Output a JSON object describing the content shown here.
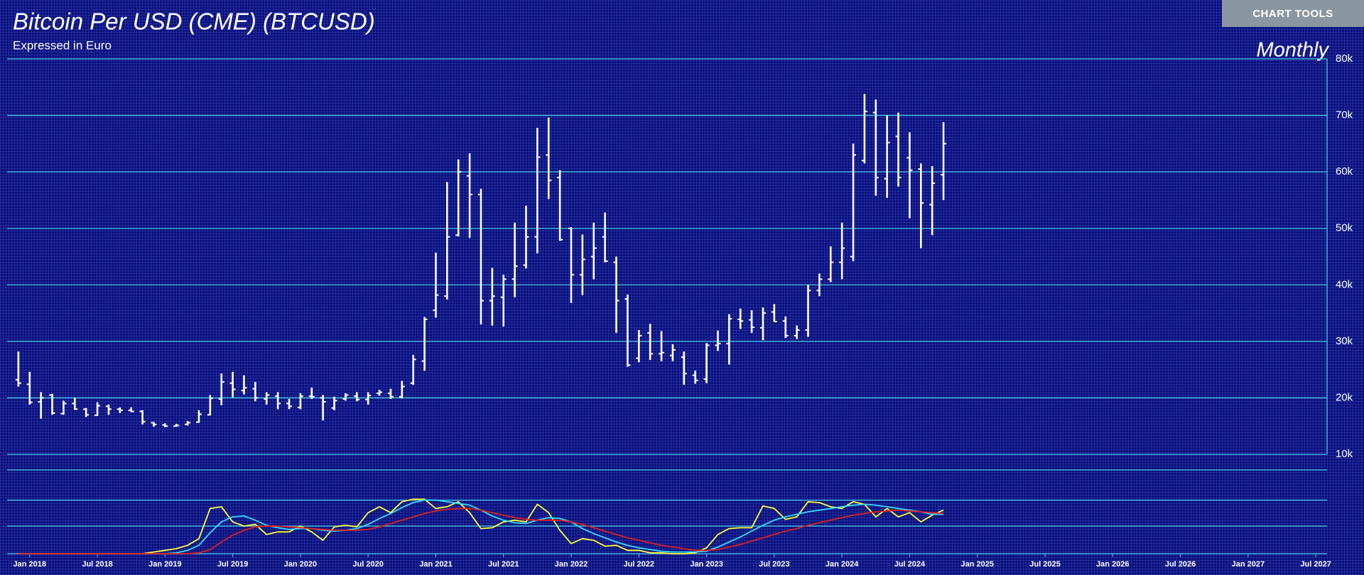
{
  "toolbar": {
    "button": "CHART TOOLS"
  },
  "chart_data": [
    {
      "type": "ohlc",
      "title": "Bitcoin Per USD (CME) (BTCUSD)",
      "subtitle": "Expressed in Euro",
      "timeframe": "Monthly",
      "x": [
        "2017-12",
        "2018-01",
        "2018-02",
        "2018-03",
        "2018-04",
        "2018-05",
        "2018-06",
        "2018-07",
        "2018-08",
        "2018-09",
        "2018-10",
        "2018-11",
        "2018-12",
        "2019-01",
        "2019-02",
        "2019-03",
        "2019-04",
        "2019-05",
        "2019-06",
        "2019-07",
        "2019-08",
        "2019-09",
        "2019-10",
        "2019-11",
        "2019-12",
        "2020-01",
        "2020-02",
        "2020-03",
        "2020-04",
        "2020-05",
        "2020-06",
        "2020-07",
        "2020-08",
        "2020-09",
        "2020-10",
        "2020-11",
        "2020-12",
        "2021-01",
        "2021-02",
        "2021-03",
        "2021-04",
        "2021-05",
        "2021-06",
        "2021-07",
        "2021-08",
        "2021-09",
        "2021-10",
        "2021-11",
        "2021-12",
        "2022-01",
        "2022-02",
        "2022-03",
        "2022-04",
        "2022-05",
        "2022-06",
        "2022-07",
        "2022-08",
        "2022-09",
        "2022-10",
        "2022-11",
        "2022-12",
        "2023-01",
        "2023-02",
        "2023-03",
        "2023-04",
        "2023-05",
        "2023-06",
        "2023-07",
        "2023-08",
        "2023-09",
        "2023-10",
        "2023-11",
        "2023-12",
        "2024-01",
        "2024-02",
        "2024-03",
        "2024-04",
        "2024-05",
        "2024-06",
        "2024-07",
        "2024-08",
        "2024-09",
        "2024-10"
      ],
      "open": [
        23200,
        22400,
        19300,
        20500,
        17200,
        19000,
        18000,
        16900,
        18500,
        18000,
        17800,
        17600,
        15600,
        15200,
        15000,
        15300,
        15700,
        17000,
        19800,
        22600,
        21300,
        21600,
        19800,
        20300,
        19000,
        18300,
        20300,
        20000,
        18200,
        19800,
        20300,
        19700,
        20800,
        20800,
        20200,
        22600,
        26500,
        35500,
        38000,
        48800,
        59300,
        56000,
        37200,
        37800,
        41000,
        43500,
        48500,
        63000,
        59000,
        50000,
        41800,
        45000,
        48500,
        44000,
        37500,
        27000,
        31500,
        27800,
        27500,
        27200,
        24000,
        23300,
        29300,
        29600,
        33900,
        33800,
        32400,
        35200,
        33600,
        31000,
        32000,
        39000,
        41000,
        44000,
        45000,
        62000,
        70500,
        58800,
        66300,
        62500,
        60500,
        54200,
        59500
      ],
      "high": [
        28200,
        24600,
        21000,
        20700,
        19500,
        20000,
        18200,
        19200,
        18800,
        18300,
        18300,
        17800,
        15700,
        15500,
        15400,
        15900,
        17800,
        20500,
        24300,
        24600,
        24000,
        22800,
        21000,
        21000,
        19800,
        20800,
        21800,
        20500,
        20200,
        20800,
        21000,
        21000,
        21400,
        21600,
        23000,
        27600,
        34300,
        45700,
        58200,
        62200,
        63300,
        57000,
        43000,
        41800,
        51000,
        54000,
        67800,
        69600,
        60300,
        50200,
        48900,
        51000,
        52800,
        45000,
        38300,
        32000,
        33100,
        31800,
        29500,
        28200,
        24800,
        29700,
        31900,
        34800,
        35800,
        35500,
        36000,
        36600,
        34400,
        32800,
        40000,
        42000,
        46800,
        51000,
        65000,
        73800,
        72800,
        70000,
        70500,
        67000,
        61500,
        61000,
        68800
      ],
      "low": [
        22000,
        18800,
        16300,
        17000,
        17000,
        17900,
        16600,
        16800,
        17000,
        17300,
        17500,
        15300,
        14900,
        14800,
        14900,
        15100,
        15600,
        16900,
        18700,
        20100,
        20600,
        19400,
        18800,
        18000,
        18000,
        18000,
        19800,
        16000,
        17800,
        19500,
        19400,
        18800,
        20400,
        19800,
        19900,
        22300,
        24800,
        34200,
        37400,
        48600,
        48300,
        33000,
        32800,
        32600,
        37800,
        42900,
        45600,
        55200,
        47800,
        36800,
        38200,
        41000,
        44000,
        31500,
        25500,
        26300,
        26700,
        26500,
        26500,
        22300,
        22500,
        22600,
        28300,
        25900,
        32200,
        31500,
        30200,
        33500,
        30600,
        30400,
        30800,
        38000,
        40500,
        41000,
        44200,
        61500,
        55800,
        55400,
        57400,
        51800,
        46500,
        48800,
        55000
      ],
      "close": [
        22600,
        19200,
        20000,
        17300,
        19000,
        18000,
        17000,
        18600,
        18000,
        17800,
        17600,
        15800,
        15300,
        15000,
        15100,
        15600,
        17100,
        19900,
        22800,
        21500,
        21800,
        20000,
        20500,
        19000,
        18500,
        20300,
        20200,
        19300,
        19500,
        20500,
        19700,
        20400,
        21000,
        20200,
        22000,
        26800,
        33900,
        38200,
        48500,
        60000,
        56000,
        37200,
        38000,
        41000,
        43300,
        48500,
        62600,
        58500,
        48000,
        41800,
        44500,
        46500,
        44200,
        37200,
        25800,
        31000,
        27800,
        28000,
        28500,
        24300,
        23100,
        29300,
        29600,
        34000,
        33600,
        32500,
        35000,
        33500,
        31000,
        32000,
        39000,
        41000,
        44000,
        46500,
        63000,
        70700,
        59000,
        65200,
        59000,
        60300,
        54500,
        58000,
        65000
      ],
      "color": "#ffffff",
      "xlim": [
        "2017-11",
        "2027-08"
      ],
      "ylim": [
        10000,
        80000
      ],
      "yticks": [
        {
          "value": 10000,
          "label": "10k"
        },
        {
          "value": 20000,
          "label": "20k"
        },
        {
          "value": 30000,
          "label": "30k"
        },
        {
          "value": 40000,
          "label": "40k"
        },
        {
          "value": 50000,
          "label": "50k"
        },
        {
          "value": 60000,
          "label": "60k"
        },
        {
          "value": 70000,
          "label": "70k"
        },
        {
          "value": 80000,
          "label": "80k"
        }
      ],
      "grid": true
    },
    {
      "type": "line",
      "x": [
        "2017-12",
        "2018-01",
        "2018-02",
        "2018-03",
        "2018-04",
        "2018-05",
        "2018-06",
        "2018-07",
        "2018-08",
        "2018-09",
        "2018-10",
        "2018-11",
        "2018-12",
        "2019-01",
        "2019-02",
        "2019-03",
        "2019-04",
        "2019-05",
        "2019-06",
        "2019-07",
        "2019-08",
        "2019-09",
        "2019-10",
        "2019-11",
        "2019-12",
        "2020-01",
        "2020-02",
        "2020-03",
        "2020-04",
        "2020-05",
        "2020-06",
        "2020-07",
        "2020-08",
        "2020-09",
        "2020-10",
        "2020-11",
        "2020-12",
        "2021-01",
        "2021-02",
        "2021-03",
        "2021-04",
        "2021-05",
        "2021-06",
        "2021-07",
        "2021-08",
        "2021-09",
        "2021-10",
        "2021-11",
        "2021-12",
        "2022-01",
        "2022-02",
        "2022-03",
        "2022-04",
        "2022-05",
        "2022-06",
        "2022-07",
        "2022-08",
        "2022-09",
        "2022-10",
        "2022-11",
        "2022-12",
        "2023-01",
        "2023-02",
        "2023-03",
        "2023-04",
        "2023-05",
        "2023-06",
        "2023-07",
        "2023-08",
        "2023-09",
        "2023-10",
        "2023-11",
        "2023-12",
        "2024-01",
        "2024-02",
        "2024-03",
        "2024-04",
        "2024-05",
        "2024-06",
        "2024-07",
        "2024-08",
        "2024-09",
        "2024-10"
      ],
      "series": [
        {
          "color": "#ffff33",
          "values": [
            0,
            0,
            0,
            0,
            0,
            0,
            0,
            0,
            0,
            0,
            0,
            0,
            2,
            4,
            6,
            10,
            18,
            54,
            56,
            38,
            33,
            35,
            23,
            26,
            26,
            33,
            26,
            16,
            32,
            34,
            32,
            49,
            56,
            49,
            62,
            65,
            65,
            54,
            56,
            62,
            49,
            30,
            31,
            38,
            40,
            38,
            59,
            49,
            28,
            12,
            18,
            16,
            9,
            10,
            4,
            4,
            1,
            1,
            0,
            0,
            1,
            7,
            23,
            30,
            31,
            31,
            57,
            54,
            41,
            44,
            62,
            61,
            56,
            54,
            62,
            59,
            44,
            54,
            44,
            49,
            38,
            46,
            52
          ]
        },
        {
          "color": "#33ddff",
          "values": [
            0,
            0,
            0,
            0,
            0,
            0,
            0,
            0,
            0,
            0,
            0,
            0,
            0,
            0,
            1,
            4,
            10,
            25,
            38,
            44,
            45,
            40,
            34,
            31,
            29,
            30,
            30,
            28,
            27,
            28,
            30,
            35,
            42,
            48,
            55,
            61,
            64,
            64,
            62,
            60,
            58,
            52,
            45,
            40,
            37,
            36,
            40,
            43,
            42,
            38,
            30,
            24,
            19,
            14,
            10,
            7,
            5,
            3,
            2,
            2,
            2,
            3,
            8,
            14,
            20,
            27,
            34,
            40,
            44,
            47,
            50,
            52,
            54,
            56,
            58,
            59,
            58,
            56,
            54,
            52,
            50,
            47,
            47
          ]
        },
        {
          "color": "#e0201a",
          "values": [
            0,
            0,
            0,
            0,
            0,
            0,
            0,
            0,
            0,
            0,
            0,
            0,
            0,
            0,
            0,
            0,
            1,
            5,
            14,
            22,
            28,
            32,
            33,
            33,
            32,
            31,
            30,
            29,
            28,
            28,
            28,
            29,
            32,
            36,
            40,
            44,
            48,
            51,
            53,
            54,
            54,
            52,
            49,
            46,
            43,
            41,
            40,
            40,
            40,
            38,
            35,
            31,
            27,
            23,
            19,
            16,
            13,
            10,
            8,
            6,
            4,
            4,
            5,
            8,
            11,
            15,
            19,
            23,
            27,
            30,
            34,
            37,
            40,
            43,
            46,
            48,
            50,
            51,
            52,
            51,
            50,
            49,
            48
          ]
        }
      ],
      "xlim": [
        "2017-11",
        "2027-08"
      ],
      "xticks": [
        {
          "value": "2018-01",
          "label": "Jan 2018"
        },
        {
          "value": "2018-07",
          "label": "Jul 2018"
        },
        {
          "value": "2019-01",
          "label": "Jan 2019"
        },
        {
          "value": "2019-07",
          "label": "Jul 2019"
        },
        {
          "value": "2020-01",
          "label": "Jan 2020"
        },
        {
          "value": "2020-07",
          "label": "Jul 2020"
        },
        {
          "value": "2021-01",
          "label": "Jan 2021"
        },
        {
          "value": "2021-07",
          "label": "Jul 2021"
        },
        {
          "value": "2022-01",
          "label": "Jan 2022"
        },
        {
          "value": "2022-07",
          "label": "Jul 2022"
        },
        {
          "value": "2023-01",
          "label": "Jan 2023"
        },
        {
          "value": "2023-07",
          "label": "Jul 2023"
        },
        {
          "value": "2024-01",
          "label": "Jan 2024"
        },
        {
          "value": "2024-07",
          "label": "Jul 2024"
        },
        {
          "value": "2025-01",
          "label": "Jan 2025"
        },
        {
          "value": "2025-07",
          "label": "Jul 2025"
        },
        {
          "value": "2026-01",
          "label": "Jan 2026"
        },
        {
          "value": "2026-07",
          "label": "Jul 2026"
        },
        {
          "value": "2027-01",
          "label": "Jan 2027"
        },
        {
          "value": "2027-07",
          "label": "Jul 2027"
        }
      ],
      "ylim": [
        0,
        100
      ],
      "yticks": [
        0,
        33,
        64,
        100
      ],
      "grid": true
    }
  ]
}
